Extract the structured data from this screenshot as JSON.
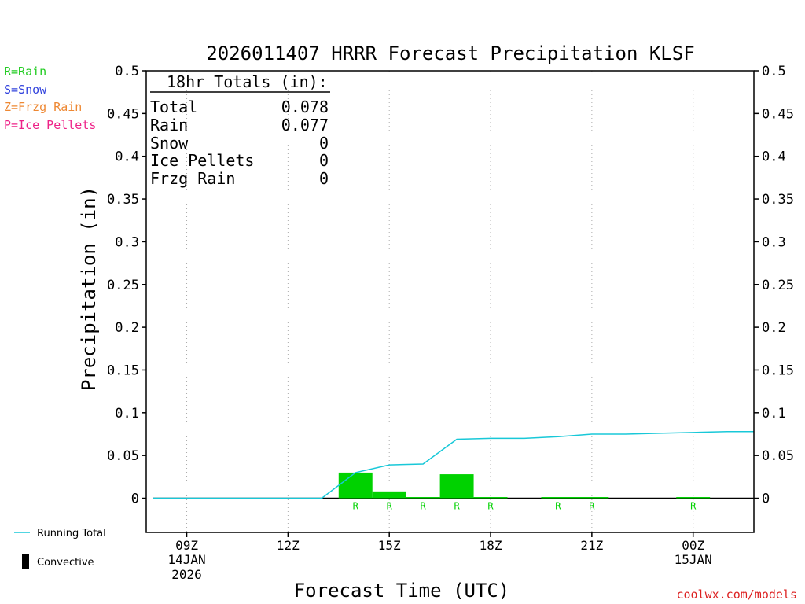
{
  "chart_data": {
    "type": "bar",
    "title": "2026011407 HRRR Forecast Precipitation KLSF",
    "xlabel": "Forecast Time (UTC)",
    "ylabel": "Precipitation (in)",
    "ylim": [
      -0.04,
      0.5
    ],
    "y_ticks": [
      "0.5",
      "0.45",
      "0.4",
      "0.35",
      "0.3",
      "0.25",
      "0.2",
      "0.15",
      "0.1",
      "0.05",
      "0"
    ],
    "x_range_hours": [
      7.8,
      25.8
    ],
    "x_ticks": [
      {
        "hour": 9,
        "label": "09Z",
        "sub1": "14JAN",
        "sub2": "2026"
      },
      {
        "hour": 12,
        "label": "12Z",
        "sub1": "",
        "sub2": ""
      },
      {
        "hour": 15,
        "label": "15Z",
        "sub1": "",
        "sub2": ""
      },
      {
        "hour": 18,
        "label": "18Z",
        "sub1": "",
        "sub2": ""
      },
      {
        "hour": 21,
        "label": "21Z",
        "sub1": "",
        "sub2": ""
      },
      {
        "hour": 24,
        "label": "00Z",
        "sub1": "15JAN",
        "sub2": ""
      }
    ],
    "bars": [
      {
        "start": 13.5,
        "end": 14.5,
        "value": 0.03,
        "type": "R"
      },
      {
        "start": 14.5,
        "end": 15.5,
        "value": 0.008,
        "type": "R"
      },
      {
        "start": 15.5,
        "end": 16.5,
        "value": 0.001,
        "type": "R"
      },
      {
        "start": 16.5,
        "end": 17.5,
        "value": 0.028,
        "type": "R"
      },
      {
        "start": 17.5,
        "end": 18.5,
        "value": 0.001,
        "type": "R"
      },
      {
        "start": 19.5,
        "end": 20.5,
        "value": 0.001,
        "type": "R"
      },
      {
        "start": 20.5,
        "end": 21.5,
        "value": 0.001,
        "type": "R"
      },
      {
        "start": 23.5,
        "end": 24.5,
        "value": 0.001,
        "type": "R"
      }
    ],
    "running_total": {
      "x": [
        8,
        9,
        10,
        11,
        12,
        13,
        14,
        15,
        16,
        17,
        18,
        19,
        20,
        21,
        22,
        23,
        24,
        25,
        25.8
      ],
      "y": [
        0,
        0,
        0,
        0,
        0,
        0,
        0.03,
        0.039,
        0.04,
        0.069,
        0.07,
        0.07,
        0.072,
        0.075,
        0.075,
        0.076,
        0.077,
        0.078,
        0.078
      ]
    },
    "totals_box": {
      "heading": "18hr Totals (in):",
      "rows": [
        {
          "label": "Total",
          "value": "0.078"
        },
        {
          "label": "Rain",
          "value": "0.077"
        },
        {
          "label": "Snow",
          "value": "0"
        },
        {
          "label": "Ice Pellets",
          "value": "0"
        },
        {
          "label": "Frzg Rain",
          "value": "0"
        }
      ]
    },
    "type_legend": [
      {
        "text": "R=Rain",
        "color": "#22cc22"
      },
      {
        "text": "S=Snow",
        "color": "#3344dd"
      },
      {
        "text": "Z=Frzg Rain",
        "color": "#ee8833"
      },
      {
        "text": "P=Ice Pellets",
        "color": "#ee2288"
      }
    ],
    "bottom_legend": {
      "running_total_label": "Running Total",
      "convective_label": "Convective"
    },
    "credit": "coolwx.com/models",
    "colors": {
      "bar": "#00d200",
      "line": "#18c8d8",
      "credit": "#dd2222",
      "axis": "#000000",
      "grid": "#aaaaaa"
    }
  }
}
